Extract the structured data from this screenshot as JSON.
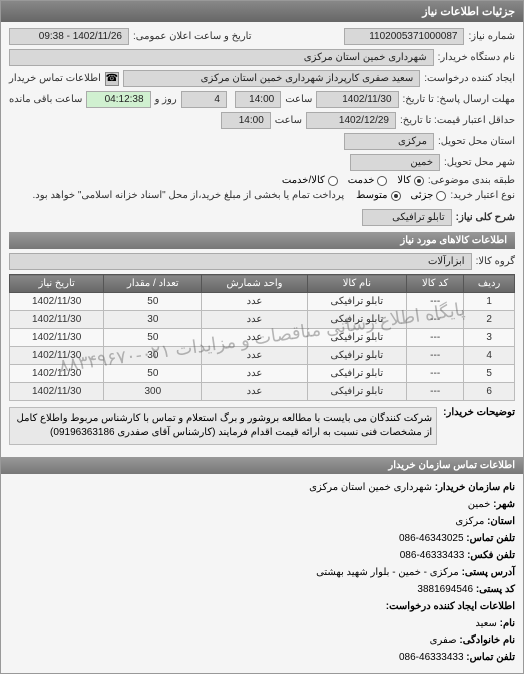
{
  "panel_title": "جزئیات اطلاعات نیاز",
  "labels": {
    "reqNo": "شماره نیاز:",
    "announceDate": "تاریخ و ساعت اعلان عمومی:",
    "buyerOrg": "نام دستگاه خریدار:",
    "requestCreator": "ایجاد کننده درخواست:",
    "buyerContact": "اطلاعات تماس خریدار",
    "responseDeadline": "مهلت ارسال پاسخ: تا تاریخ:",
    "priceValidity": "حداقل اعتبار قیمت: تا تاریخ:",
    "deliveryProvince": "استان محل تحویل:",
    "deliveryCity": "شهر محل تحویل:",
    "subjectClass": "طبقه بندی موضوعی:",
    "creditType": "نوع اعتبار خرید:",
    "creditNote": "پرداخت تمام یا بخشی از مبلغ خرید،از محل \"اسناد خزانه اسلامی\" خواهد بود.",
    "needDescTitle": "شرح کلی نیاز:",
    "hour": "ساعت",
    "days": "روز و",
    "remaining": "ساعت باقی مانده"
  },
  "reqNo": "1102005371000087",
  "announceDate": "1402/11/26 - 09:38",
  "buyerOrg": "شهرداری خمین استان مرکزی",
  "requestCreator": "سعید صفری کارپرداز شهرداری خمین استان مرکزی",
  "responseDate": "1402/11/30",
  "responseHour": "14:00",
  "daysLeft": "4",
  "timeLeft": "04:12:38",
  "priceDate": "1402/12/29",
  "priceHour": "14:00",
  "deliveryProvince": "مرکزی",
  "deliveryCity": "خمین",
  "subjectOptions": {
    "goods": "کالا",
    "service": "خدمت",
    "both": "کالا/خدمت"
  },
  "creditOptions": {
    "partial": "جزئی",
    "medium": "متوسط"
  },
  "needDesc": "تابلو ترافیکی",
  "itemsTitle": "اطلاعات کالاهای مورد نیاز",
  "groupLabel": "گروه کالا:",
  "groupValue": "ابزارآلات",
  "table": {
    "columns": [
      "ردیف",
      "کد کالا",
      "نام کالا",
      "واحد شمارش",
      "تعداد / مقدار",
      "تاریخ نیاز"
    ],
    "rows": [
      [
        "1",
        "---",
        "تابلو ترافیکی",
        "عدد",
        "50",
        "1402/11/30"
      ],
      [
        "2",
        "---",
        "تابلو ترافیکی",
        "عدد",
        "30",
        "1402/11/30"
      ],
      [
        "3",
        "---",
        "تابلو ترافیکی",
        "عدد",
        "50",
        "1402/11/30"
      ],
      [
        "4",
        "---",
        "تابلو ترافیکی",
        "عدد",
        "30",
        "1402/11/30"
      ],
      [
        "5",
        "---",
        "تابلو ترافیکی",
        "عدد",
        "50",
        "1402/11/30"
      ],
      [
        "6",
        "---",
        "تابلو ترافیکی",
        "عدد",
        "300",
        "1402/11/30"
      ]
    ]
  },
  "watermark": "پایگاه اطلاع رسانی مناقصات و مزایدات ۰۲۱-۸۸۳۴۹۶۷۰",
  "buyerNoteLabel": "توضیحات خریدار:",
  "buyerNote": "شرکت کنندگان می بایست با مطالعه بروشور و برگ استعلام و تماس با کارشناس مربوط واطلاع کامل از مشخصات فنی نسبت به ارائه قیمت اقدام فرمایند (کارشناس آقای صفدری 09196363186)",
  "contactTitle": "اطلاعات تماس سازمان خریدار",
  "contact": {
    "orgNameLabel": "نام سازمان خریدار:",
    "orgName": "شهرداری خمین استان مرکزی",
    "cityLabel": "شهر:",
    "city": "خمین",
    "provinceLabel": "استان:",
    "province": "مرکزی",
    "phoneLabel": "تلفن تماس:",
    "phone": "46343025-086",
    "faxLabel": "تلفن فکس:",
    "fax": "46333433-086",
    "addressLabel": "آدرس پستی:",
    "address": "مرکزی - خمین - بلوار شهید بهشتی",
    "postalLabel": "کد پستی:",
    "postal": "3881694546",
    "creatorTitle": "اطلاعات ایجاد کننده درخواست:",
    "nameLabel": "نام:",
    "name": "سعید",
    "familyLabel": "نام خانوادگی:",
    "family": "صفری",
    "creatorPhoneLabel": "تلفن تماس:",
    "creatorPhone": "46333433-086"
  }
}
